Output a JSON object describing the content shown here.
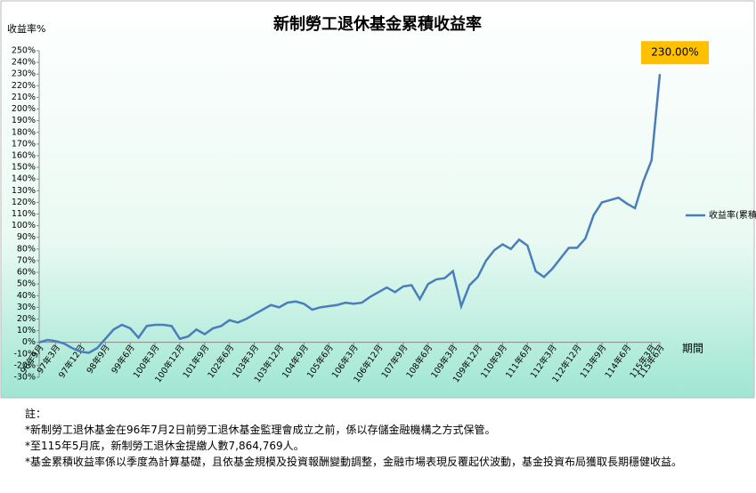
{
  "chart_data": {
    "type": "line",
    "title": "新制勞工退休基金累積收益率",
    "y_label": "收益率%",
    "x_label": "期間",
    "categories": [
      "96年9月",
      null,
      "97年3月",
      null,
      null,
      "97年12月",
      null,
      null,
      "98年9月",
      null,
      null,
      "99年6月",
      null,
      null,
      "100年3月",
      null,
      null,
      "100年12月",
      null,
      null,
      "101年9月",
      null,
      null,
      "102年6月",
      null,
      null,
      "103年3月",
      null,
      null,
      "103年12月",
      null,
      null,
      "104年9月",
      null,
      null,
      "105年6月",
      null,
      null,
      "106年3月",
      null,
      null,
      "106年12月",
      null,
      null,
      "107年9月",
      null,
      null,
      "108年6月",
      null,
      null,
      "109年3月",
      null,
      null,
      "109年12月",
      null,
      null,
      "110年9月",
      null,
      null,
      "111年6月",
      null,
      null,
      "112年3月",
      null,
      null,
      "112年12月",
      null,
      null,
      "113年9月",
      null,
      null,
      "114年6月",
      null,
      null,
      "115年3月",
      "115年6月"
    ],
    "series": [
      {
        "name": "收益率(累積)",
        "color": "#4a7ebb",
        "values": [
          0,
          2,
          1,
          -1,
          -5,
          -8,
          -9,
          -5,
          3,
          11,
          15,
          12,
          4,
          14,
          15,
          15,
          14,
          3,
          5,
          11,
          7,
          12,
          14,
          19,
          17,
          20,
          24,
          28,
          32,
          30,
          34,
          35,
          33,
          28,
          30,
          31,
          32,
          34,
          33,
          34,
          39,
          43,
          47,
          43,
          48,
          49,
          37,
          50,
          54,
          55,
          61,
          31,
          49,
          56,
          70,
          79,
          84,
          80,
          88,
          83,
          61,
          56,
          63,
          72,
          81,
          81,
          89,
          109,
          120,
          122,
          124,
          119,
          115,
          138,
          156,
          230
        ]
      }
    ],
    "annotation": "230.00%",
    "ylim": [
      -30,
      250
    ],
    "yticks": [
      {
        "value": -30,
        "label": "-30%"
      },
      {
        "value": -20,
        "label": "-20%"
      },
      {
        "value": -10,
        "label": "-10%"
      },
      {
        "value": 0,
        "label": "0%"
      },
      {
        "value": 10,
        "label": "10%"
      },
      {
        "value": 20,
        "label": "20%"
      },
      {
        "value": 30,
        "label": "30%"
      },
      {
        "value": 40,
        "label": "40%"
      },
      {
        "value": 50,
        "label": "50%"
      },
      {
        "value": 60,
        "label": "60%"
      },
      {
        "value": 70,
        "label": "70%"
      },
      {
        "value": 80,
        "label": "80%"
      },
      {
        "value": 90,
        "label": "90%"
      },
      {
        "value": 100,
        "label": "100%"
      },
      {
        "value": 110,
        "label": "110%"
      },
      {
        "value": 120,
        "label": "120%"
      },
      {
        "value": 130,
        "label": "130%"
      },
      {
        "value": 140,
        "label": "140%"
      },
      {
        "value": 150,
        "label": "150%"
      },
      {
        "value": 160,
        "label": "160%"
      },
      {
        "value": 170,
        "label": "170%"
      },
      {
        "value": 180,
        "label": "180%"
      },
      {
        "value": 190,
        "label": "190%"
      },
      {
        "value": 200,
        "label": "200%"
      },
      {
        "value": 210,
        "label": "210%"
      },
      {
        "value": 220,
        "label": "220%"
      },
      {
        "value": 230,
        "label": "230%"
      },
      {
        "value": 240,
        "label": "240%"
      },
      {
        "value": 250,
        "label": "250%"
      }
    ],
    "grid": false,
    "legend": "right"
  },
  "notes": {
    "heading": "註：",
    "lines": [
      "*新制勞工退休基金在96年7月2日前勞工退休基金監理會成立之前，係以存儲金融機構之方式保管。",
      "*至115年5月底，新制勞工退休金提繳人數7,864,769人。",
      "*基金累積收益率係以季度為計算基礎，且依基金規模及投資報酬變動調整，金融市場表現反覆起伏波動，基金投資布局獲取長期穩健收益。"
    ]
  }
}
